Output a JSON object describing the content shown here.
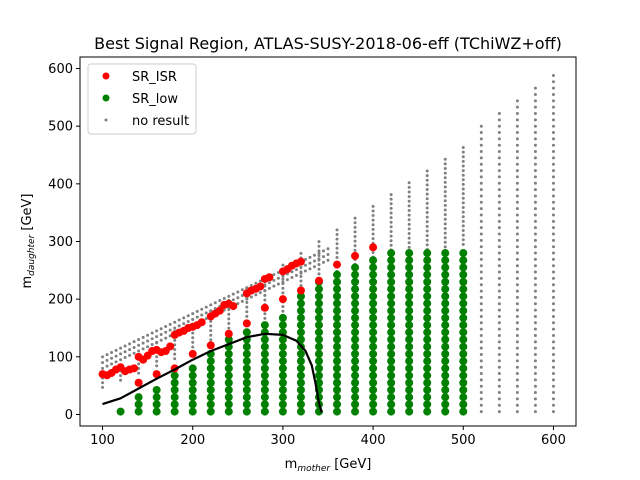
{
  "chart_data": {
    "type": "scatter",
    "title": "Best Signal Region, ATLAS-SUSY-2018-06-eff (TChiWZ+off)",
    "xlabel": {
      "main": "m",
      "sub": "mother",
      "unit": " [GeV]"
    },
    "ylabel": {
      "main": "m",
      "sub": "daughter",
      "unit": " [GeV]"
    },
    "xlim": [
      75,
      625
    ],
    "ylim": [
      -20,
      620
    ],
    "xticks": [
      100,
      200,
      300,
      400,
      500,
      600
    ],
    "yticks": [
      0,
      100,
      200,
      300,
      400,
      500,
      600
    ],
    "grid": false,
    "legend_position": "top-left",
    "colors": {
      "SR_ISR": "#ff0000",
      "SR_low": "#008000",
      "no result": "#808080",
      "contour": "#000000"
    },
    "series": [
      {
        "name": "SR_ISR",
        "marker": "large dot",
        "points": [
          [
            100,
            70
          ],
          [
            105,
            68
          ],
          [
            110,
            72
          ],
          [
            115,
            78
          ],
          [
            120,
            82
          ],
          [
            125,
            75
          ],
          [
            130,
            78
          ],
          [
            135,
            80
          ],
          [
            140,
            100
          ],
          [
            145,
            95
          ],
          [
            150,
            102
          ],
          [
            155,
            110
          ],
          [
            160,
            112
          ],
          [
            165,
            108
          ],
          [
            170,
            110
          ],
          [
            175,
            118
          ],
          [
            180,
            138
          ],
          [
            185,
            142
          ],
          [
            190,
            145
          ],
          [
            195,
            150
          ],
          [
            200,
            152
          ],
          [
            205,
            155
          ],
          [
            210,
            160
          ],
          [
            220,
            170
          ],
          [
            225,
            175
          ],
          [
            230,
            180
          ],
          [
            235,
            190
          ],
          [
            240,
            192
          ],
          [
            245,
            188
          ],
          [
            260,
            210
          ],
          [
            265,
            215
          ],
          [
            270,
            218
          ],
          [
            275,
            222
          ],
          [
            280,
            235
          ],
          [
            285,
            238
          ],
          [
            300,
            248
          ],
          [
            305,
            252
          ],
          [
            310,
            258
          ],
          [
            315,
            262
          ],
          [
            320,
            265
          ],
          [
            140,
            55
          ],
          [
            160,
            70
          ],
          [
            180,
            80
          ],
          [
            200,
            105
          ],
          [
            220,
            120
          ],
          [
            240,
            140
          ],
          [
            260,
            158
          ],
          [
            280,
            185
          ],
          [
            300,
            200
          ],
          [
            320,
            215
          ],
          [
            340,
            232
          ],
          [
            360,
            260
          ],
          [
            380,
            275
          ],
          [
            400,
            290
          ]
        ]
      },
      {
        "name": "SR_low",
        "marker": "large dot",
        "points": "mass grid x=120..500 step 20, y=5..(x-100) step ~13 above the lower triangle, excluding SR_ISR points"
      },
      {
        "name": "no result",
        "marker": "small dot",
        "points": "grid x=100..600 step 20, covering the diagonal band and region x>500"
      }
    ],
    "contour": [
      [
        100,
        18
      ],
      [
        120,
        28
      ],
      [
        140,
        45
      ],
      [
        160,
        62
      ],
      [
        180,
        78
      ],
      [
        200,
        95
      ],
      [
        220,
        110
      ],
      [
        240,
        122
      ],
      [
        260,
        134
      ],
      [
        280,
        140
      ],
      [
        300,
        138
      ],
      [
        315,
        128
      ],
      [
        325,
        110
      ],
      [
        332,
        85
      ],
      [
        336,
        55
      ],
      [
        340,
        20
      ],
      [
        343,
        3
      ]
    ]
  }
}
